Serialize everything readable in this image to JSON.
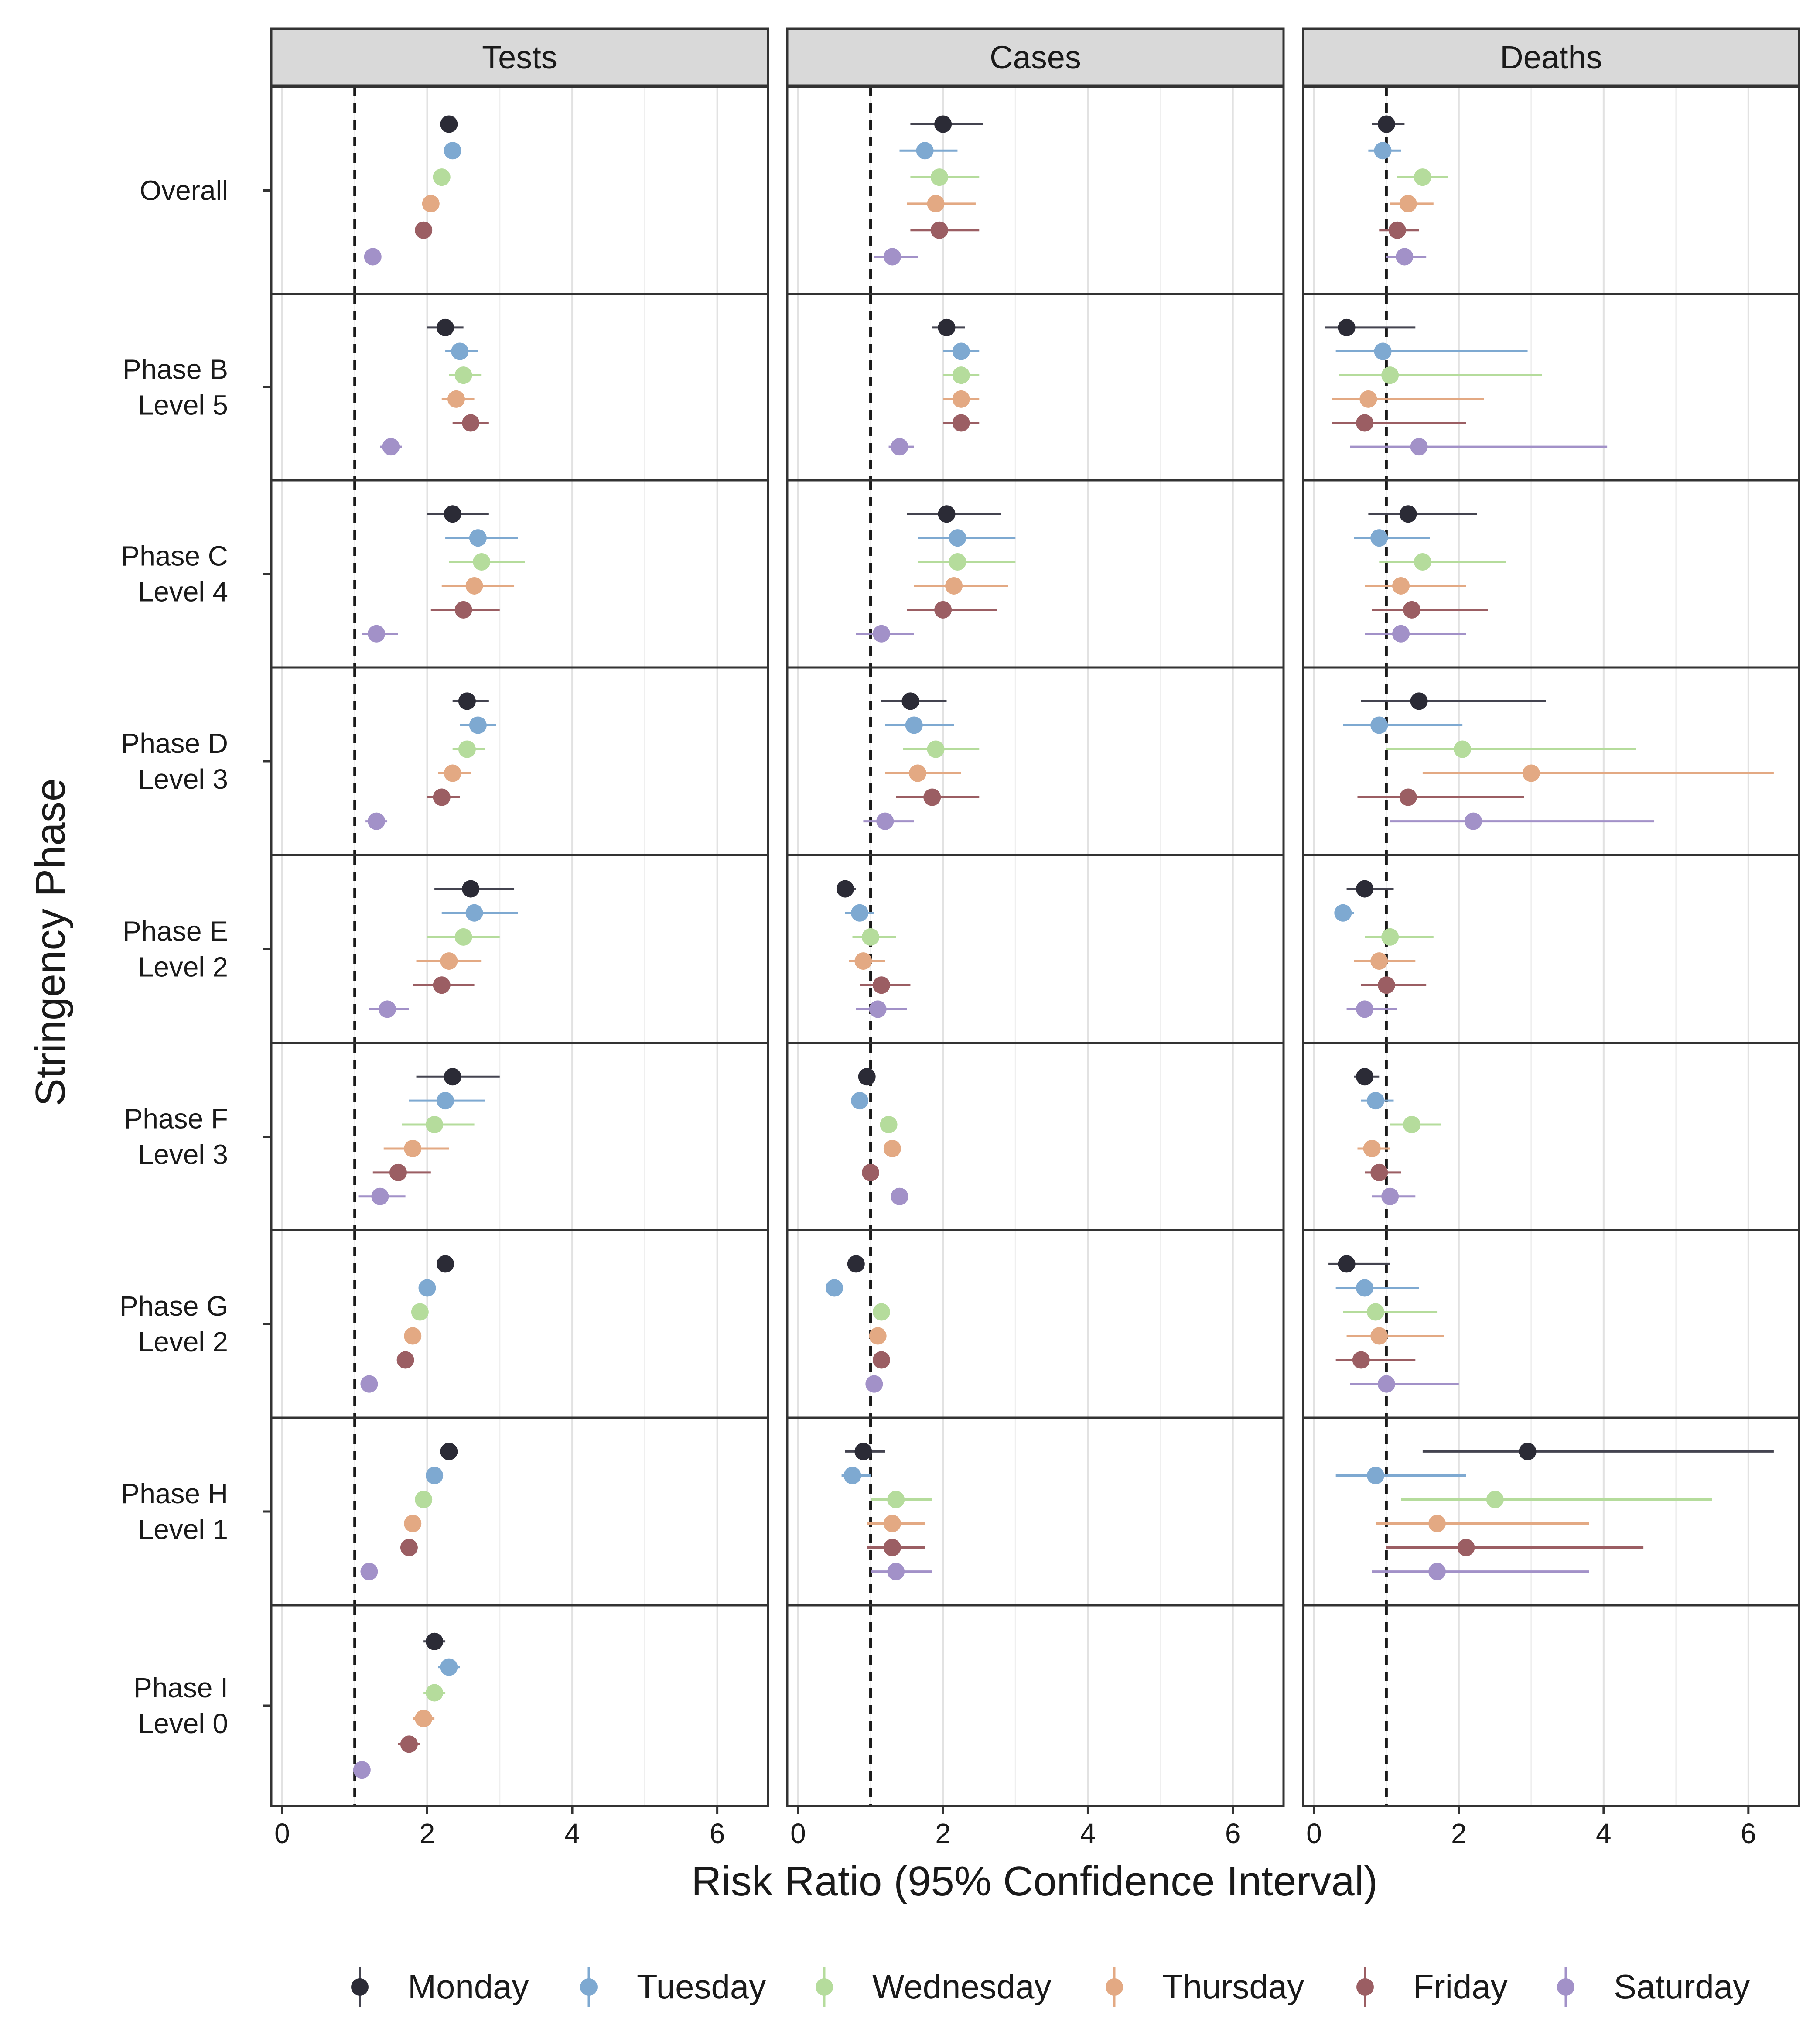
{
  "chart_data": {
    "type": "forest",
    "xlabel": "Risk Ratio (95% Confidence Interval)",
    "ylabel": "Stringency  Phase",
    "xlim": [
      -0.15,
      6.7
    ],
    "xticks": [
      "0",
      "2",
      "4",
      "6"
    ],
    "xtick_values": [
      0,
      2,
      4,
      6
    ],
    "reference_line": 1,
    "grid": true,
    "legend_position": "bottom",
    "facets": [
      "Tests",
      "Cases",
      "Deaths"
    ],
    "rows": [
      {
        "id": "overall",
        "label": [
          "Overall"
        ]
      },
      {
        "id": "phase_b",
        "label": [
          "Phase B",
          "Level 5"
        ]
      },
      {
        "id": "phase_c",
        "label": [
          "Phase C",
          "Level 4"
        ]
      },
      {
        "id": "phase_d",
        "label": [
          "Phase D",
          "Level 3"
        ]
      },
      {
        "id": "phase_e",
        "label": [
          "Phase E",
          "Level 2"
        ]
      },
      {
        "id": "phase_f",
        "label": [
          "Phase F",
          "Level 3"
        ]
      },
      {
        "id": "phase_g",
        "label": [
          "Phase G",
          "Level 2"
        ]
      },
      {
        "id": "phase_h",
        "label": [
          "Phase H",
          "Level 1"
        ]
      },
      {
        "id": "phase_i",
        "label": [
          "Phase I",
          "Level 0"
        ]
      }
    ],
    "series": [
      {
        "name": "Monday",
        "color": "#2b2b36"
      },
      {
        "name": "Tuesday",
        "color": "#7ea9d1"
      },
      {
        "name": "Wednesday",
        "color": "#b5dc9c"
      },
      {
        "name": "Thursday",
        "color": "#e3a983"
      },
      {
        "name": "Friday",
        "color": "#9b5e63"
      },
      {
        "name": "Saturday",
        "color": "#a291c8"
      }
    ],
    "estimates": {
      "Tests": [
        [
          [
            2.3,
            2.2,
            2.4
          ],
          [
            2.35,
            2.25,
            2.45
          ],
          [
            2.2,
            2.1,
            2.3
          ],
          [
            2.05,
            1.95,
            2.15
          ],
          [
            1.95,
            1.85,
            2.05
          ],
          [
            1.25,
            1.15,
            1.35
          ]
        ],
        [
          [
            2.25,
            2.0,
            2.5
          ],
          [
            2.45,
            2.25,
            2.7
          ],
          [
            2.5,
            2.3,
            2.75
          ],
          [
            2.4,
            2.2,
            2.65
          ],
          [
            2.6,
            2.35,
            2.85
          ],
          [
            1.5,
            1.35,
            1.65
          ]
        ],
        [
          [
            2.35,
            2.0,
            2.85
          ],
          [
            2.7,
            2.25,
            3.25
          ],
          [
            2.75,
            2.3,
            3.35
          ],
          [
            2.65,
            2.2,
            3.2
          ],
          [
            2.5,
            2.05,
            3.0
          ],
          [
            1.3,
            1.1,
            1.6
          ]
        ],
        [
          [
            2.55,
            2.35,
            2.85
          ],
          [
            2.7,
            2.45,
            2.95
          ],
          [
            2.55,
            2.35,
            2.8
          ],
          [
            2.35,
            2.15,
            2.6
          ],
          [
            2.2,
            2.0,
            2.45
          ],
          [
            1.3,
            1.15,
            1.45
          ]
        ],
        [
          [
            2.6,
            2.1,
            3.2
          ],
          [
            2.65,
            2.2,
            3.25
          ],
          [
            2.5,
            2.0,
            3.0
          ],
          [
            2.3,
            1.85,
            2.75
          ],
          [
            2.2,
            1.8,
            2.65
          ],
          [
            1.45,
            1.2,
            1.75
          ]
        ],
        [
          [
            2.35,
            1.85,
            3.0
          ],
          [
            2.25,
            1.75,
            2.8
          ],
          [
            2.1,
            1.65,
            2.65
          ],
          [
            1.8,
            1.4,
            2.3
          ],
          [
            1.6,
            1.25,
            2.05
          ],
          [
            1.35,
            1.05,
            1.7
          ]
        ],
        [
          [
            2.25,
            2.15,
            2.35
          ],
          [
            2.0,
            1.9,
            2.1
          ],
          [
            1.9,
            1.8,
            2.0
          ],
          [
            1.8,
            1.7,
            1.9
          ],
          [
            1.7,
            1.6,
            1.8
          ],
          [
            1.2,
            1.1,
            1.3
          ]
        ],
        [
          [
            2.3,
            2.2,
            2.4
          ],
          [
            2.1,
            2.0,
            2.2
          ],
          [
            1.95,
            1.85,
            2.05
          ],
          [
            1.8,
            1.7,
            1.9
          ],
          [
            1.75,
            1.65,
            1.85
          ],
          [
            1.2,
            1.1,
            1.3
          ]
        ],
        [
          [
            2.1,
            1.95,
            2.25
          ],
          [
            2.3,
            2.15,
            2.45
          ],
          [
            2.1,
            1.95,
            2.25
          ],
          [
            1.95,
            1.8,
            2.1
          ],
          [
            1.75,
            1.6,
            1.9
          ],
          [
            1.1,
            1.0,
            1.2
          ]
        ]
      ],
      "Cases": [
        [
          [
            2.0,
            1.55,
            2.55
          ],
          [
            1.75,
            1.4,
            2.2
          ],
          [
            1.95,
            1.55,
            2.5
          ],
          [
            1.9,
            1.5,
            2.45
          ],
          [
            1.95,
            1.55,
            2.5
          ],
          [
            1.3,
            1.05,
            1.65
          ]
        ],
        [
          [
            2.05,
            1.85,
            2.3
          ],
          [
            2.25,
            2.0,
            2.5
          ],
          [
            2.25,
            2.0,
            2.5
          ],
          [
            2.25,
            2.0,
            2.5
          ],
          [
            2.25,
            2.0,
            2.5
          ],
          [
            1.4,
            1.25,
            1.6
          ]
        ],
        [
          [
            2.05,
            1.5,
            2.8
          ],
          [
            2.2,
            1.65,
            3.0
          ],
          [
            2.2,
            1.65,
            3.0
          ],
          [
            2.15,
            1.6,
            2.9
          ],
          [
            2.0,
            1.5,
            2.75
          ],
          [
            1.15,
            0.8,
            1.6
          ]
        ],
        [
          [
            1.55,
            1.15,
            2.05
          ],
          [
            1.6,
            1.2,
            2.15
          ],
          [
            1.9,
            1.45,
            2.5
          ],
          [
            1.65,
            1.2,
            2.25
          ],
          [
            1.85,
            1.35,
            2.5
          ],
          [
            1.2,
            0.9,
            1.6
          ]
        ],
        [
          [
            0.65,
            0.55,
            0.8
          ],
          [
            0.85,
            0.65,
            1.05
          ],
          [
            1.0,
            0.75,
            1.35
          ],
          [
            0.9,
            0.7,
            1.2
          ],
          [
            1.15,
            0.85,
            1.55
          ],
          [
            1.1,
            0.8,
            1.5
          ]
        ],
        [
          [
            0.95,
            0.9,
            1.0
          ],
          [
            0.85,
            0.8,
            0.9
          ],
          [
            1.25,
            1.2,
            1.3
          ],
          [
            1.3,
            1.25,
            1.35
          ],
          [
            1.0,
            0.95,
            1.05
          ],
          [
            1.4,
            1.35,
            1.45
          ]
        ],
        [
          [
            0.8,
            0.75,
            0.85
          ],
          [
            0.5,
            0.45,
            0.55
          ],
          [
            1.15,
            1.1,
            1.2
          ],
          [
            1.1,
            1.05,
            1.15
          ],
          [
            1.15,
            1.1,
            1.2
          ],
          [
            1.05,
            1.0,
            1.1
          ]
        ],
        [
          [
            0.9,
            0.65,
            1.2
          ],
          [
            0.75,
            0.6,
            1.0
          ],
          [
            1.35,
            1.0,
            1.85
          ],
          [
            1.3,
            0.95,
            1.75
          ],
          [
            1.3,
            0.95,
            1.75
          ],
          [
            1.35,
            1.0,
            1.85
          ]
        ],
        [
          [
            null,
            null,
            null
          ],
          [
            null,
            null,
            null
          ],
          [
            null,
            null,
            null
          ],
          [
            null,
            null,
            null
          ],
          [
            null,
            null,
            null
          ],
          [
            null,
            null,
            null
          ]
        ]
      ],
      "Deaths": [
        [
          [
            1.0,
            0.8,
            1.25
          ],
          [
            0.95,
            0.75,
            1.2
          ],
          [
            1.5,
            1.15,
            1.85
          ],
          [
            1.3,
            1.05,
            1.65
          ],
          [
            1.15,
            0.9,
            1.45
          ],
          [
            1.25,
            1.0,
            1.55
          ]
        ],
        [
          [
            0.45,
            0.15,
            1.4
          ],
          [
            0.95,
            0.3,
            2.95
          ],
          [
            1.05,
            0.35,
            3.15
          ],
          [
            0.75,
            0.25,
            2.35
          ],
          [
            0.7,
            0.25,
            2.1
          ],
          [
            1.45,
            0.5,
            4.05
          ]
        ],
        [
          [
            1.3,
            0.75,
            2.25
          ],
          [
            0.9,
            0.55,
            1.6
          ],
          [
            1.5,
            0.9,
            2.65
          ],
          [
            1.2,
            0.7,
            2.1
          ],
          [
            1.35,
            0.8,
            2.4
          ],
          [
            1.2,
            0.7,
            2.1
          ]
        ],
        [
          [
            1.45,
            0.65,
            3.2
          ],
          [
            0.9,
            0.4,
            2.05
          ],
          [
            2.05,
            1.0,
            4.45
          ],
          [
            3.0,
            1.5,
            6.35
          ],
          [
            1.3,
            0.6,
            2.9
          ],
          [
            2.2,
            1.05,
            4.7
          ]
        ],
        [
          [
            0.7,
            0.45,
            1.1
          ],
          [
            0.4,
            0.3,
            0.55
          ],
          [
            1.05,
            0.7,
            1.65
          ],
          [
            0.9,
            0.55,
            1.4
          ],
          [
            1.0,
            0.65,
            1.55
          ],
          [
            0.7,
            0.45,
            1.15
          ]
        ],
        [
          [
            0.7,
            0.55,
            0.9
          ],
          [
            0.85,
            0.65,
            1.1
          ],
          [
            1.35,
            1.05,
            1.75
          ],
          [
            0.8,
            0.6,
            1.05
          ],
          [
            0.9,
            0.7,
            1.2
          ],
          [
            1.05,
            0.8,
            1.4
          ]
        ],
        [
          [
            0.45,
            0.2,
            1.05
          ],
          [
            0.7,
            0.3,
            1.45
          ],
          [
            0.85,
            0.4,
            1.7
          ],
          [
            0.9,
            0.45,
            1.8
          ],
          [
            0.65,
            0.3,
            1.4
          ],
          [
            1.0,
            0.5,
            2.0
          ]
        ],
        [
          [
            2.95,
            1.5,
            6.35
          ],
          [
            0.85,
            0.3,
            2.1
          ],
          [
            2.5,
            1.2,
            5.5
          ],
          [
            1.7,
            0.85,
            3.8
          ],
          [
            2.1,
            1.0,
            4.55
          ],
          [
            1.7,
            0.8,
            3.8
          ]
        ],
        [
          [
            null,
            null,
            null
          ],
          [
            null,
            null,
            null
          ],
          [
            null,
            null,
            null
          ],
          [
            null,
            null,
            null
          ],
          [
            null,
            null,
            null
          ],
          [
            null,
            null,
            null
          ]
        ]
      ]
    }
  }
}
